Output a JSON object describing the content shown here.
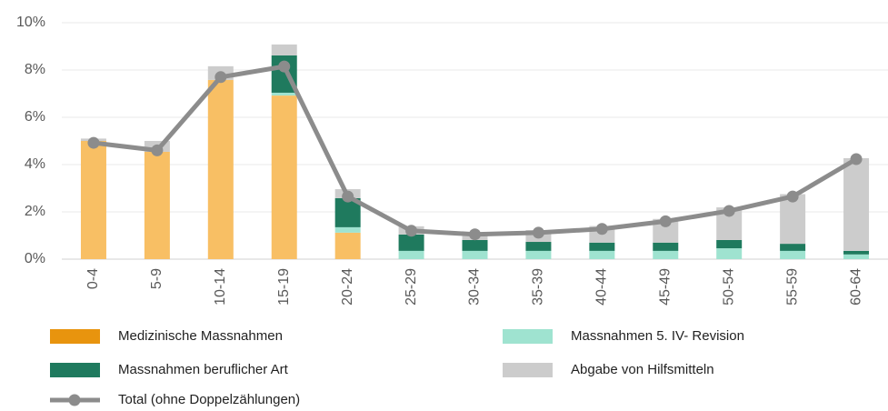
{
  "chart_data": {
    "type": "bar",
    "stacked": true,
    "categories": [
      "0-4",
      "5-9",
      "10-14",
      "15-19",
      "20-24",
      "25-29",
      "30-34",
      "35-39",
      "40-44",
      "45-49",
      "50-54",
      "55-59",
      "60-64"
    ],
    "series": [
      {
        "name": "Medizinische Massnahmen",
        "color": "#f8bf64",
        "values": [
          5.0,
          4.54,
          7.58,
          6.92,
          1.12,
          0,
          0,
          0,
          0,
          0,
          0,
          0,
          0
        ]
      },
      {
        "name": "Massnahmen 5. IV- Revision",
        "color": "#9fe3d0",
        "values": [
          0,
          0,
          0,
          0.12,
          0.23,
          0.35,
          0.35,
          0.35,
          0.35,
          0.35,
          0.46,
          0.35,
          0.2
        ]
      },
      {
        "name": "Massnahmen beruflicher Art",
        "color": "#1f7a5e",
        "values": [
          0,
          0,
          0,
          1.58,
          1.23,
          0.69,
          0.46,
          0.38,
          0.35,
          0.35,
          0.35,
          0.3,
          0.15
        ]
      },
      {
        "name": "Abgabe von Hilfsmitteln",
        "color": "#cccccc",
        "values": [
          0.1,
          0.46,
          0.58,
          0.46,
          0.38,
          0.35,
          0.23,
          0.5,
          0.7,
          1.0,
          1.38,
          2.1,
          3.92
        ]
      },
      {
        "name": "Total (ohne Doppelzählungen)",
        "color": "#8c8c8c",
        "type": "line",
        "values": [
          4.92,
          4.6,
          7.7,
          8.15,
          2.65,
          1.2,
          1.05,
          1.12,
          1.28,
          1.6,
          2.04,
          2.65,
          4.23
        ]
      }
    ],
    "ylim": [
      0,
      10
    ],
    "yticks": [
      {
        "value": 0,
        "label": "0%"
      },
      {
        "value": 2,
        "label": "2%"
      },
      {
        "value": 4,
        "label": "4%"
      },
      {
        "value": 6,
        "label": "6%"
      },
      {
        "value": 8,
        "label": "8%"
      },
      {
        "value": 10,
        "label": "10%"
      }
    ],
    "grid": true,
    "legend": "bottom"
  }
}
